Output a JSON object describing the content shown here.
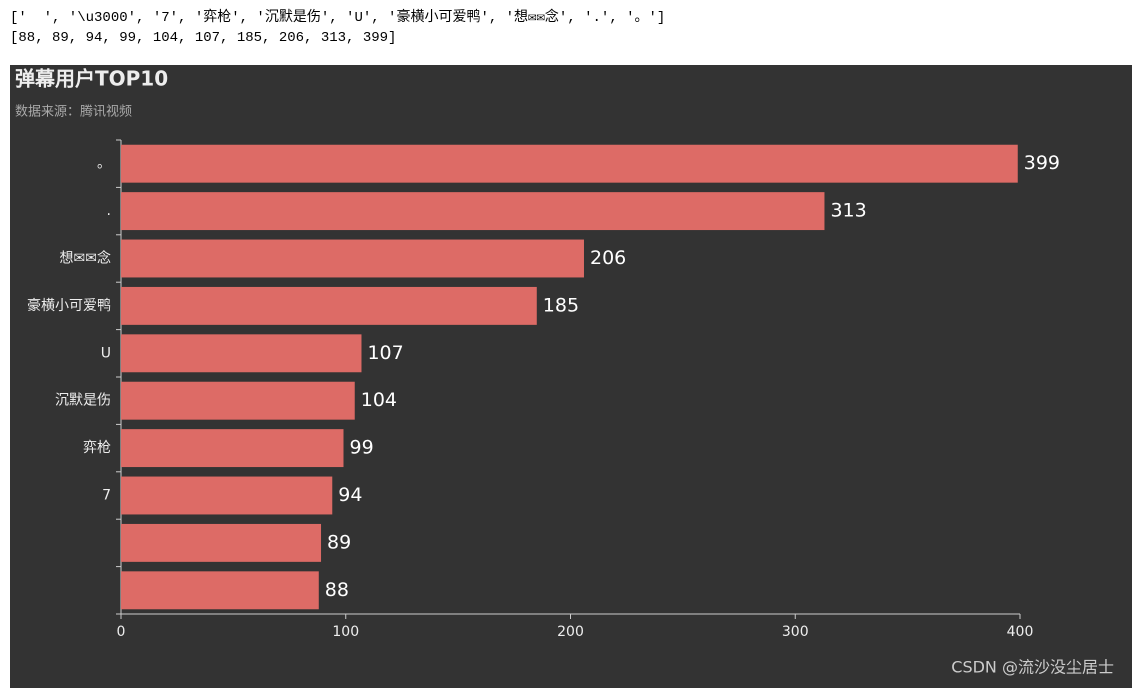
{
  "output_lines": [
    "['  ', '\\u3000', '7', '弈枪', '沉默是伤', 'U', '豪横小可爱鸭', '想✉✉念', '.', '。']",
    "[88, 89, 94, 99, 104, 107, 185, 206, 313, 399]"
  ],
  "chart_data": {
    "type": "hbar",
    "title": "弹幕用户TOP10",
    "subtitle": "数据来源：腾讯视频",
    "categories": [
      null,
      null,
      "7",
      "弈枪",
      "沉默是伤",
      "U",
      "豪横小可爱鸭",
      "想✉✉念",
      ".",
      "。"
    ],
    "values": [
      88,
      89,
      94,
      99,
      104,
      107,
      185,
      206,
      313,
      399
    ],
    "color": "#dd6b66",
    "xlim": [
      0,
      400
    ],
    "xticks": [
      0,
      100,
      200,
      300,
      400
    ],
    "grid": false
  },
  "watermark": "CSDN @流沙没尘居士"
}
